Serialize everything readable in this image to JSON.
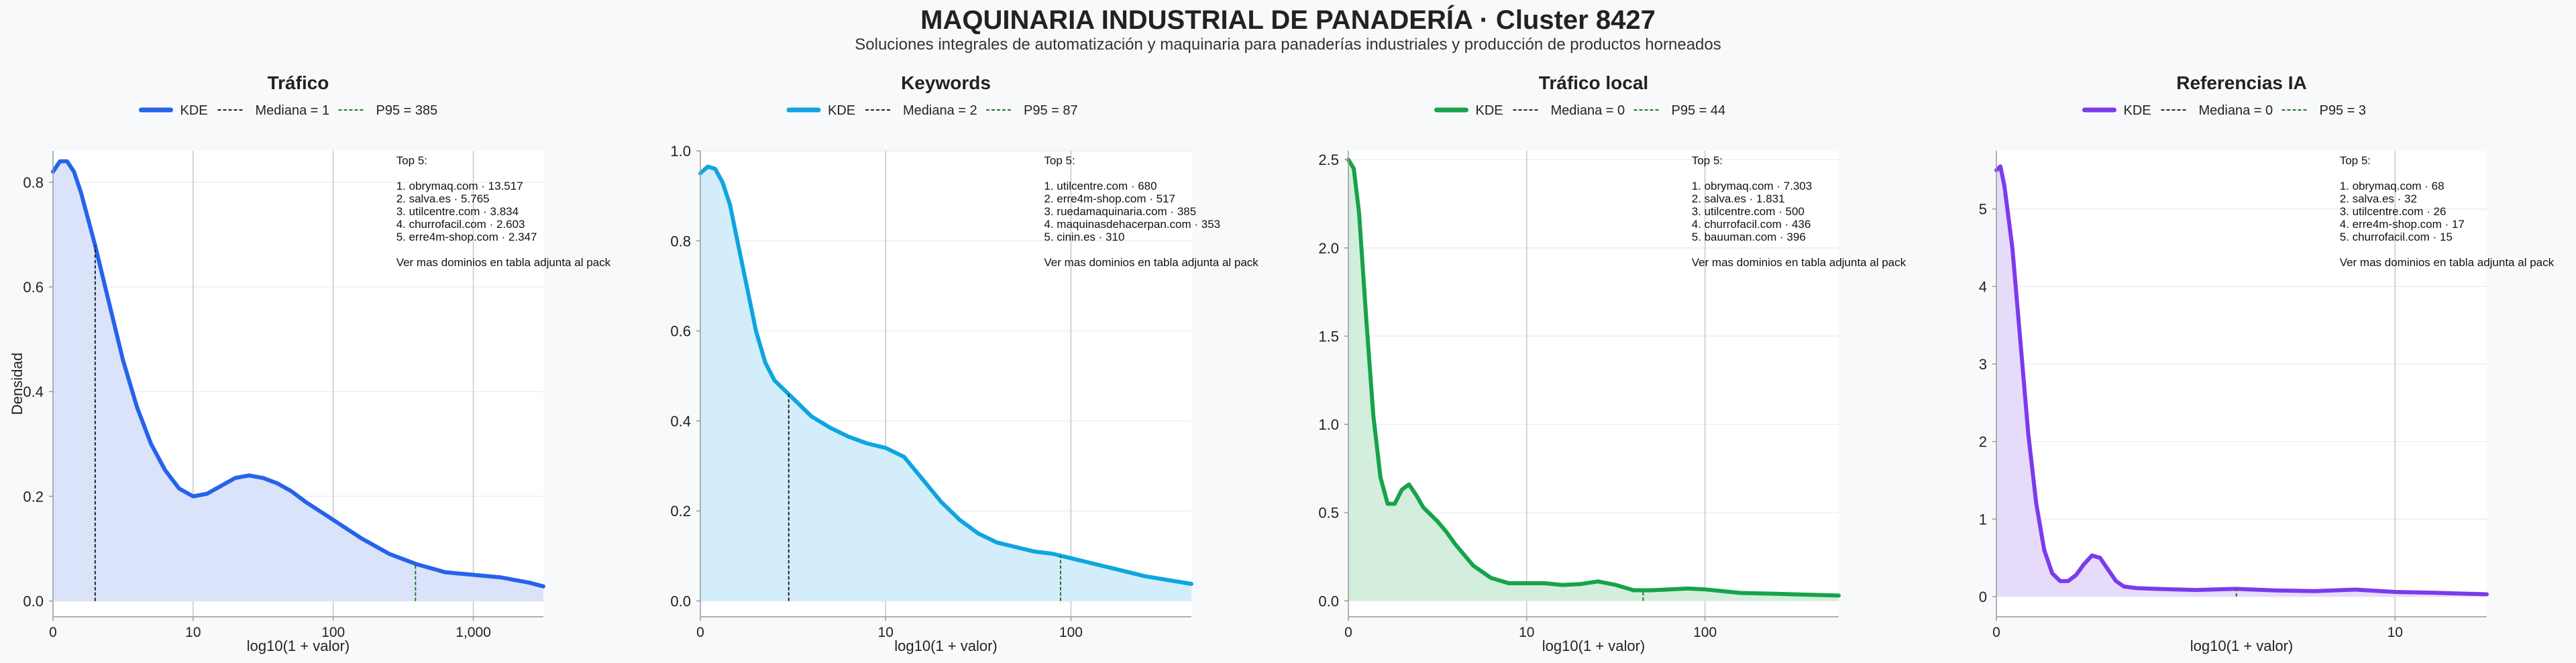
{
  "title": "MAQUINARIA INDUSTRIAL DE PANADERÍA · Cluster 8427",
  "subtitle": "Soluciones integrales de automatización y maquinaria para panaderías industriales y producción de productos horneados",
  "colors": {
    "background": "#f8f9fb",
    "median": "#222222",
    "p95": "#1f7a1f"
  },
  "chart_data": [
    {
      "type": "area",
      "title": "Tráfico",
      "xlabel": "log10(1 + valor)",
      "ylabel": "Densidad",
      "color": "#2563eb",
      "fill": "#dbe3fb",
      "x_scale": "log10(1+x)",
      "xlim": [
        0,
        3.5
      ],
      "ylim": [
        -0.03,
        0.86
      ],
      "xticks": [
        {
          "v": 0,
          "label": "0"
        },
        {
          "v": 1,
          "label": "10"
        },
        {
          "v": 2,
          "label": "100"
        },
        {
          "v": 3,
          "label": "1,000"
        }
      ],
      "yticks": [
        {
          "v": 0,
          "label": "0.0"
        },
        {
          "v": 0.2,
          "label": "0.2"
        },
        {
          "v": 0.4,
          "label": "0.4"
        },
        {
          "v": 0.6,
          "label": "0.6"
        },
        {
          "v": 0.8,
          "label": "0.8"
        }
      ],
      "curve_x": [
        0,
        0.05,
        0.1,
        0.15,
        0.2,
        0.3,
        0.4,
        0.5,
        0.6,
        0.7,
        0.8,
        0.9,
        1.0,
        1.1,
        1.2,
        1.3,
        1.4,
        1.5,
        1.6,
        1.7,
        1.8,
        2.0,
        2.2,
        2.4,
        2.6,
        2.8,
        3.0,
        3.2,
        3.4,
        3.5
      ],
      "curve_y": [
        0.82,
        0.84,
        0.84,
        0.82,
        0.78,
        0.68,
        0.57,
        0.46,
        0.37,
        0.3,
        0.25,
        0.215,
        0.2,
        0.205,
        0.22,
        0.235,
        0.24,
        0.235,
        0.225,
        0.21,
        0.19,
        0.155,
        0.12,
        0.09,
        0.07,
        0.055,
        0.05,
        0.045,
        0.035,
        0.028
      ],
      "legend": {
        "kde": "KDE",
        "median": "Mediana = 1",
        "p95": "P95 = 385"
      },
      "median_x": 0.301,
      "p95_x": 2.587,
      "annotation": [
        "Top 5:",
        "",
        "1. obrymaq.com · 13.517",
        "2. salva.es · 5.765",
        "3. utilcentre.com · 3.834",
        "4. churrofacil.com · 2.603",
        "5. erre4m-shop.com · 2.347",
        "",
        "Ver mas dominios en tabla adjunta al pack"
      ]
    },
    {
      "type": "area",
      "title": "Keywords",
      "xlabel": "log10(1 + valor)",
      "ylabel": "",
      "color": "#0ea5e0",
      "fill": "#d3eefa",
      "x_scale": "log10(1+x)",
      "xlim": [
        0,
        2.65
      ],
      "ylim": [
        -0.035,
        1.0
      ],
      "xticks": [
        {
          "v": 0,
          "label": "0"
        },
        {
          "v": 1,
          "label": "10"
        },
        {
          "v": 2,
          "label": "100"
        }
      ],
      "yticks": [
        {
          "v": 0,
          "label": "0.0"
        },
        {
          "v": 0.2,
          "label": "0.2"
        },
        {
          "v": 0.4,
          "label": "0.4"
        },
        {
          "v": 0.6,
          "label": "0.6"
        },
        {
          "v": 0.8,
          "label": "0.8"
        },
        {
          "v": 1.0,
          "label": "1.0"
        }
      ],
      "curve_x": [
        0,
        0.04,
        0.08,
        0.12,
        0.16,
        0.2,
        0.25,
        0.3,
        0.35,
        0.4,
        0.45,
        0.5,
        0.6,
        0.7,
        0.8,
        0.9,
        1.0,
        1.1,
        1.2,
        1.3,
        1.4,
        1.5,
        1.6,
        1.7,
        1.8,
        1.9,
        2.0,
        2.2,
        2.4,
        2.65
      ],
      "curve_y": [
        0.95,
        0.965,
        0.96,
        0.93,
        0.88,
        0.8,
        0.7,
        0.6,
        0.53,
        0.49,
        0.47,
        0.45,
        0.41,
        0.385,
        0.365,
        0.35,
        0.34,
        0.32,
        0.27,
        0.22,
        0.18,
        0.15,
        0.13,
        0.12,
        0.11,
        0.105,
        0.095,
        0.075,
        0.055,
        0.038
      ],
      "legend": {
        "kde": "KDE",
        "median": "Mediana = 2",
        "p95": "P95 = 87"
      },
      "median_x": 0.477,
      "p95_x": 1.944,
      "annotation": [
        "Top 5:",
        "",
        "1. utilcentre.com · 680",
        "2. erre4m-shop.com · 517",
        "3. ruedamaquinaria.com · 385",
        "4. maquinasdehacerpan.com · 353",
        "5. cinin.es · 310",
        "",
        "Ver mas dominios en tabla adjunta al pack"
      ]
    },
    {
      "type": "area",
      "title": "Tráfico local",
      "xlabel": "log10(1 + valor)",
      "ylabel": "",
      "color": "#16a34a",
      "fill": "#d3eedd",
      "x_scale": "log10(1+x)",
      "xlim": [
        0,
        2.75
      ],
      "ylim": [
        -0.09,
        2.55
      ],
      "xticks": [
        {
          "v": 0,
          "label": "0"
        },
        {
          "v": 1,
          "label": "10"
        },
        {
          "v": 2,
          "label": "100"
        }
      ],
      "yticks": [
        {
          "v": 0,
          "label": "0.0"
        },
        {
          "v": 0.5,
          "label": "0.5"
        },
        {
          "v": 1.0,
          "label": "1.0"
        },
        {
          "v": 1.5,
          "label": "1.5"
        },
        {
          "v": 2.0,
          "label": "2.0"
        },
        {
          "v": 2.5,
          "label": "2.5"
        }
      ],
      "curve_x": [
        0,
        0.03,
        0.06,
        0.1,
        0.14,
        0.18,
        0.22,
        0.26,
        0.3,
        0.34,
        0.38,
        0.42,
        0.46,
        0.5,
        0.55,
        0.6,
        0.7,
        0.8,
        0.9,
        1.0,
        1.1,
        1.2,
        1.3,
        1.4,
        1.5,
        1.6,
        1.7,
        1.8,
        1.9,
        2.0,
        2.2,
        2.4,
        2.75
      ],
      "curve_y": [
        2.5,
        2.45,
        2.2,
        1.6,
        1.05,
        0.7,
        0.55,
        0.55,
        0.63,
        0.66,
        0.6,
        0.53,
        0.49,
        0.45,
        0.39,
        0.32,
        0.2,
        0.13,
        0.1,
        0.1,
        0.1,
        0.09,
        0.095,
        0.11,
        0.09,
        0.06,
        0.06,
        0.065,
        0.07,
        0.065,
        0.045,
        0.04,
        0.03
      ],
      "legend": {
        "kde": "KDE",
        "median": "Mediana = 0",
        "p95": "P95 = 44"
      },
      "median_x": 0,
      "p95_x": 1.653,
      "annotation": [
        "Top 5:",
        "",
        "1. obrymaq.com · 7.303",
        "2. salva.es · 1.831",
        "3. utilcentre.com · 500",
        "4. churrofacil.com · 436",
        "5. bauuman.com · 396",
        "",
        "Ver mas dominios en tabla adjunta al pack"
      ]
    },
    {
      "type": "area",
      "title": "Referencias IA",
      "xlabel": "log10(1 + valor)",
      "ylabel": "",
      "color": "#7c3aed",
      "fill": "#e7dbfa",
      "x_scale": "log10(1+x)",
      "xlim": [
        0,
        1.23
      ],
      "ylim": [
        -0.26,
        5.75
      ],
      "xticks": [
        {
          "v": 0,
          "label": "0"
        },
        {
          "v": 1,
          "label": "10"
        }
      ],
      "yticks": [
        {
          "v": 0,
          "label": "0"
        },
        {
          "v": 1,
          "label": "1"
        },
        {
          "v": 2,
          "label": "2"
        },
        {
          "v": 3,
          "label": "3"
        },
        {
          "v": 4,
          "label": "4"
        },
        {
          "v": 5,
          "label": "5"
        }
      ],
      "curve_x": [
        0,
        0.01,
        0.02,
        0.04,
        0.06,
        0.08,
        0.1,
        0.12,
        0.14,
        0.16,
        0.18,
        0.2,
        0.22,
        0.24,
        0.26,
        0.28,
        0.3,
        0.32,
        0.35,
        0.4,
        0.5,
        0.6,
        0.7,
        0.8,
        0.9,
        1.0,
        1.1,
        1.23
      ],
      "curve_y": [
        5.5,
        5.55,
        5.3,
        4.5,
        3.3,
        2.1,
        1.2,
        0.6,
        0.3,
        0.2,
        0.2,
        0.28,
        0.42,
        0.53,
        0.5,
        0.35,
        0.2,
        0.13,
        0.11,
        0.1,
        0.085,
        0.1,
        0.08,
        0.07,
        0.09,
        0.06,
        0.05,
        0.03
      ],
      "legend": {
        "kde": "KDE",
        "median": "Mediana = 0",
        "p95": "P95 = 3"
      },
      "median_x": 0,
      "p95_x": 0.602,
      "annotation": [
        "Top 5:",
        "",
        "1. obrymaq.com · 68",
        "2. salva.es · 32",
        "3. utilcentre.com · 26",
        "4. erre4m-shop.com · 17",
        "5. churrofacil.com · 15",
        "",
        "Ver mas dominios en tabla adjunta al pack"
      ]
    }
  ]
}
